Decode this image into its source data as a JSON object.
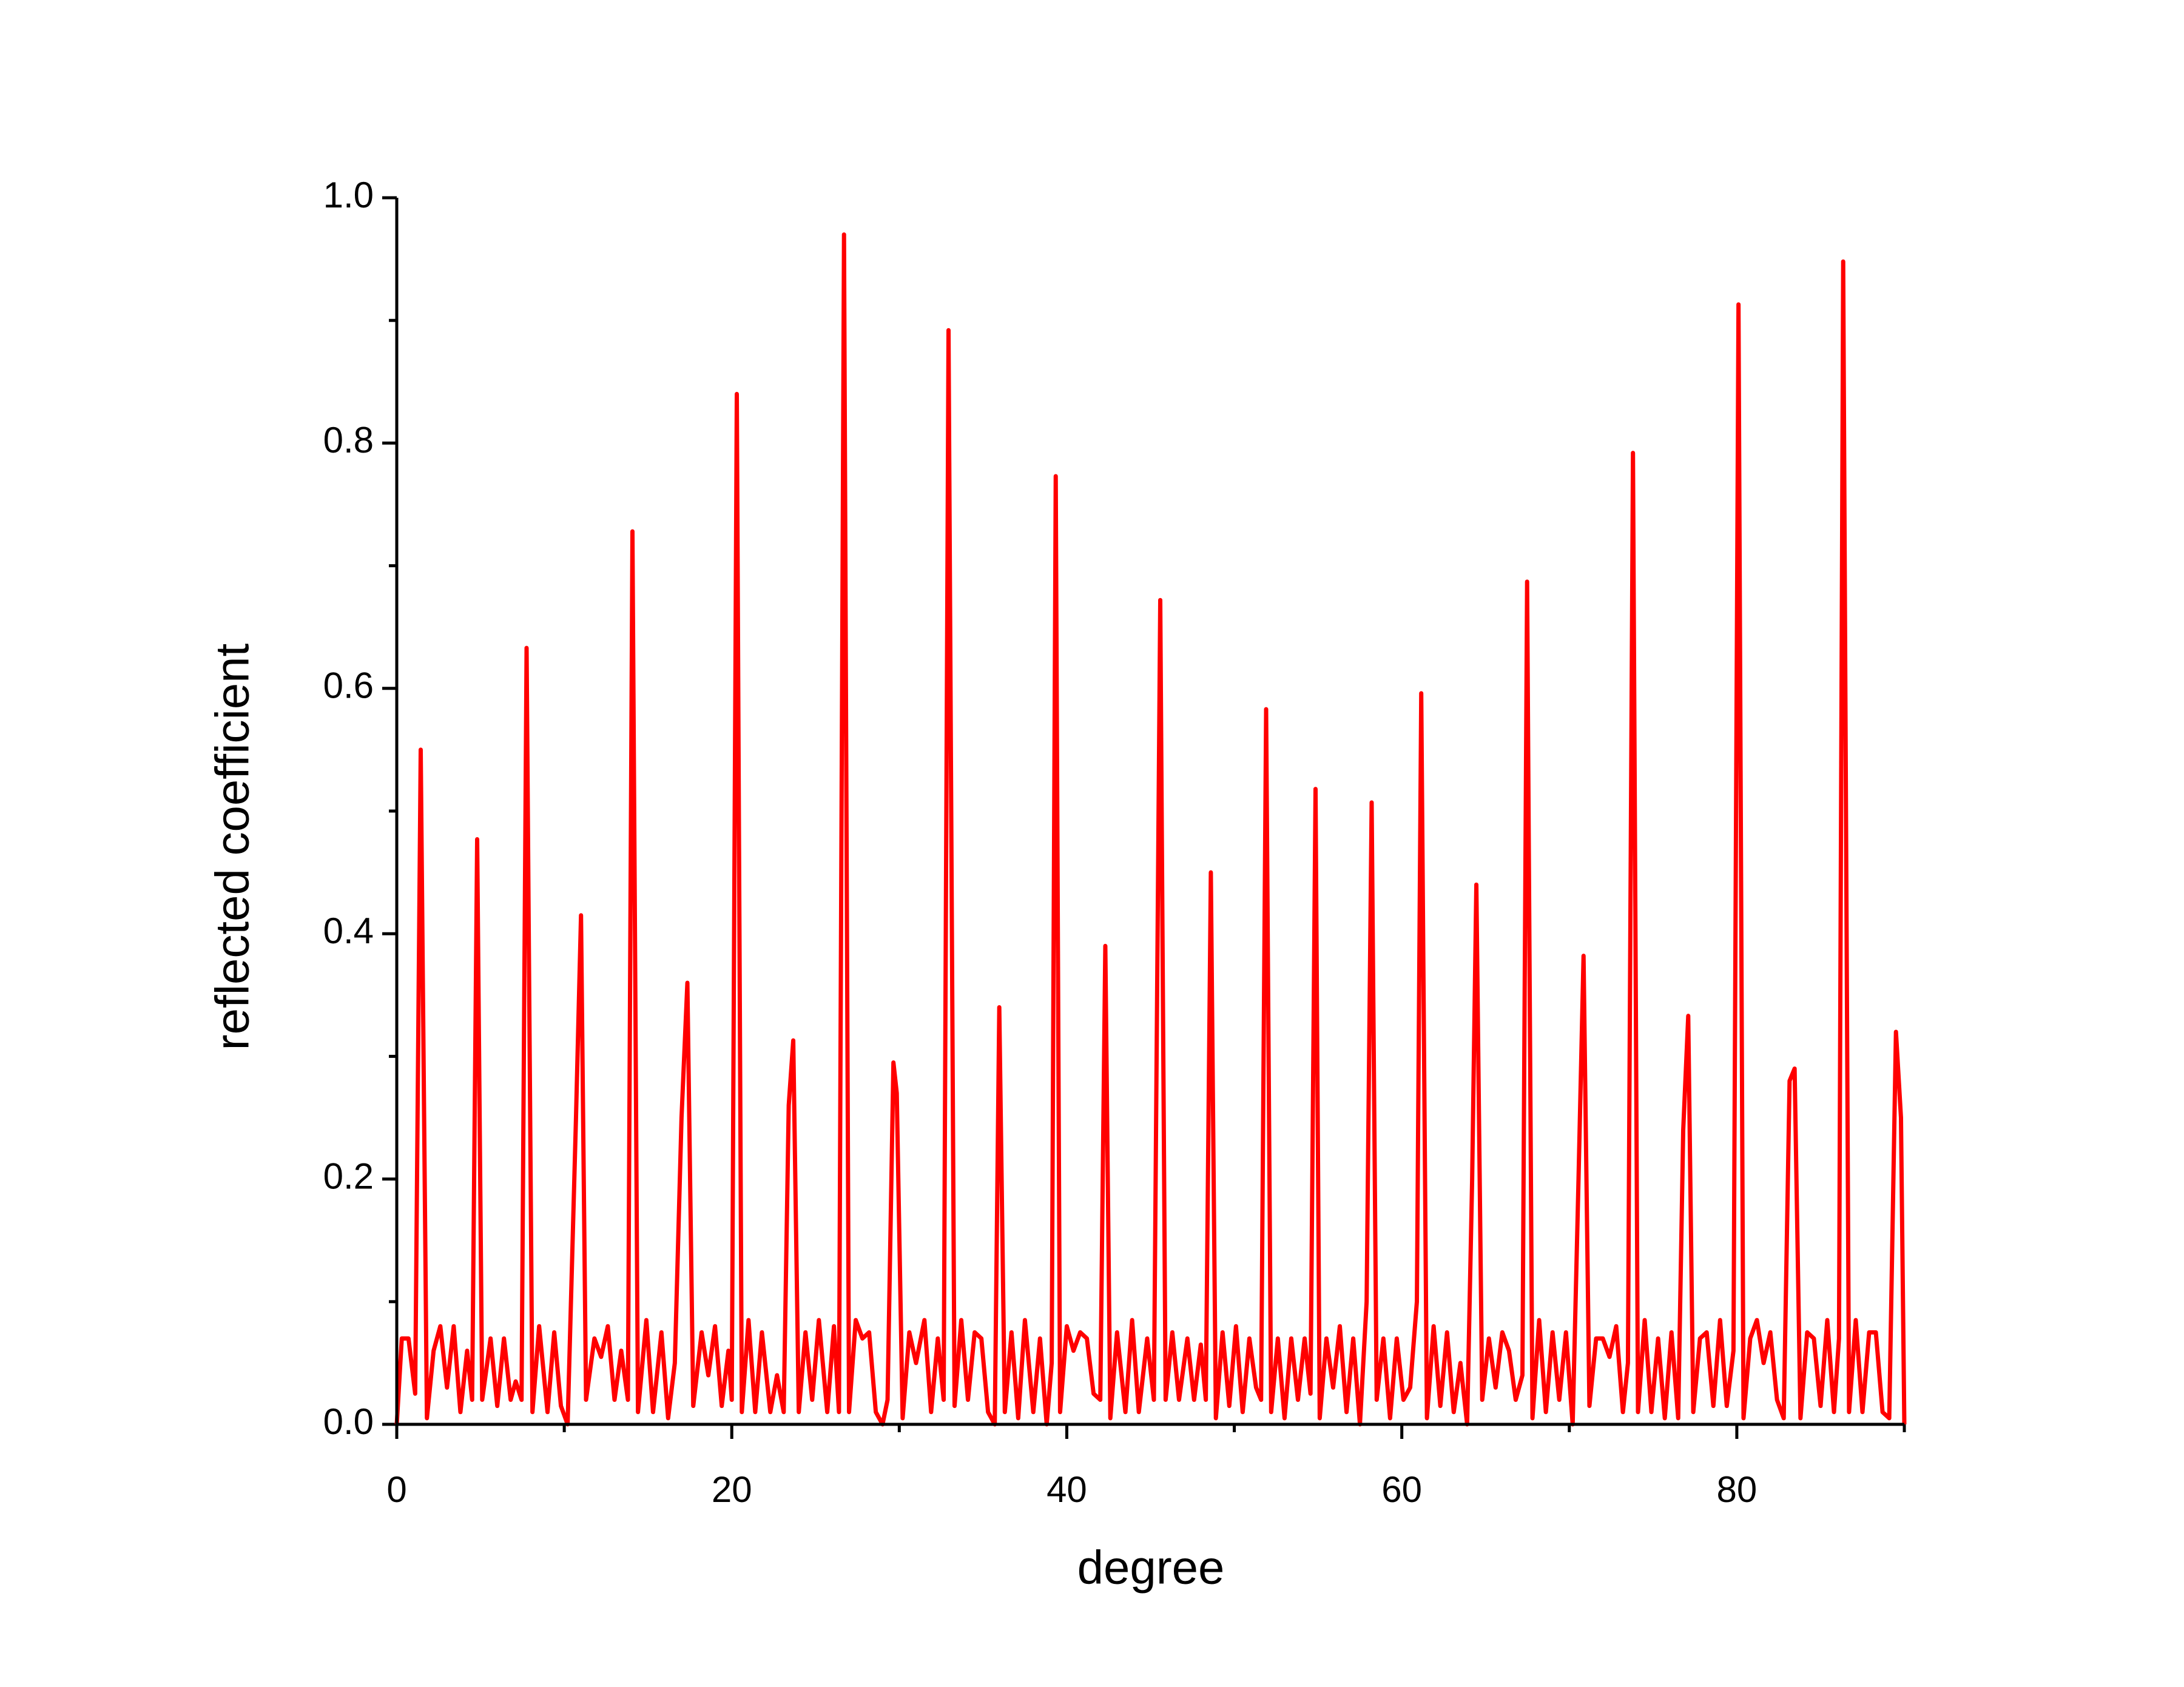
{
  "chart_data": {
    "type": "line",
    "x_label": "degree",
    "y_label": "reflected coefficient",
    "xlim": [
      0,
      90
    ],
    "ylim": [
      0,
      1
    ],
    "xticks": [
      0,
      20,
      40,
      60,
      80
    ],
    "yticks": [
      {
        "value": 0,
        "label": "0.0"
      },
      {
        "value": 0.2,
        "label": "0.2"
      },
      {
        "value": 0.4,
        "label": "0.4"
      },
      {
        "value": 0.6,
        "label": "0.6"
      },
      {
        "value": 0.8,
        "label": "0.8"
      },
      {
        "value": 1,
        "label": "1.0"
      }
    ],
    "xminor_ticks": [
      10,
      30,
      50,
      70,
      90
    ],
    "yminor_ticks": [
      0.1,
      0.3,
      0.5,
      0.7,
      0.9
    ],
    "x": [
      0,
      0.3,
      0.7,
      1.1,
      1.43,
      1.8,
      2.2,
      2.6,
      3.0,
      3.4,
      3.8,
      4.2,
      4.5,
      4.8,
      5.1,
      5.6,
      6.0,
      6.4,
      6.8,
      7.1,
      7.45,
      7.75,
      8.1,
      8.5,
      9.0,
      9.4,
      9.8,
      10.2,
      10.7,
      11.0,
      11.3,
      11.8,
      12.2,
      12.6,
      13.0,
      13.4,
      13.8,
      14.07,
      14.4,
      14.9,
      15.3,
      15.8,
      16.2,
      16.6,
      17.0,
      17.35,
      17.7,
      18.2,
      18.6,
      19.0,
      19.4,
      19.8,
      20.0,
      20.3,
      20.6,
      21.0,
      21.4,
      21.8,
      22.3,
      22.7,
      23.1,
      23.4,
      23.67,
      24.0,
      24.4,
      24.8,
      25.2,
      25.7,
      26.1,
      26.4,
      26.7,
      27.0,
      27.4,
      27.8,
      28.2,
      28.6,
      29.0,
      29.3,
      29.65,
      29.85,
      30.2,
      30.6,
      31.0,
      31.5,
      31.9,
      32.3,
      32.65,
      32.94,
      33.3,
      33.7,
      34.1,
      34.5,
      34.9,
      35.3,
      35.7,
      35.97,
      36.3,
      36.7,
      37.1,
      37.5,
      38.0,
      38.4,
      38.8,
      39.1,
      39.34,
      39.6,
      40.0,
      40.4,
      40.8,
      41.2,
      41.6,
      42.0,
      42.3,
      42.6,
      43.0,
      43.5,
      43.9,
      44.3,
      44.8,
      45.2,
      45.58,
      45.9,
      46.3,
      46.7,
      47.2,
      47.6,
      48.0,
      48.3,
      48.6,
      48.9,
      49.3,
      49.7,
      50.1,
      50.5,
      50.9,
      51.3,
      51.6,
      51.9,
      52.2,
      52.6,
      53.0,
      53.4,
      53.8,
      54.2,
      54.55,
      54.85,
      55.1,
      55.5,
      55.9,
      56.3,
      56.7,
      57.1,
      57.5,
      57.9,
      58.2,
      58.5,
      58.9,
      59.3,
      59.7,
      60.1,
      60.5,
      60.9,
      61.16,
      61.5,
      61.9,
      62.3,
      62.7,
      63.1,
      63.5,
      63.9,
      64.2,
      64.45,
      64.8,
      65.2,
      65.6,
      66.0,
      66.4,
      66.8,
      67.2,
      67.48,
      67.8,
      68.2,
      68.6,
      69.0,
      69.4,
      69.8,
      70.2,
      70.55,
      70.85,
      71.2,
      71.6,
      72.0,
      72.4,
      72.8,
      73.2,
      73.5,
      73.8,
      74.1,
      74.5,
      74.9,
      75.3,
      75.7,
      76.1,
      76.5,
      76.8,
      77.1,
      77.4,
      77.8,
      78.2,
      78.6,
      79.0,
      79.4,
      79.8,
      80.1,
      80.4,
      80.8,
      81.2,
      81.6,
      82.0,
      82.4,
      82.8,
      83.15,
      83.45,
      83.8,
      84.2,
      84.6,
      85.0,
      85.4,
      85.8,
      86.1,
      86.35,
      86.7,
      87.1,
      87.5,
      87.9,
      88.3,
      88.7,
      89.1,
      89.5,
      89.8,
      90
    ],
    "series": [
      {
        "color": "#ff0000",
        "values": [
          0.0,
          0.07,
          0.07,
          0.025,
          0.55,
          0.005,
          0.06,
          0.08,
          0.03,
          0.08,
          0.01,
          0.06,
          0.02,
          0.477,
          0.02,
          0.07,
          0.015,
          0.07,
          0.02,
          0.035,
          0.02,
          0.633,
          0.01,
          0.08,
          0.01,
          0.075,
          0.015,
          0.0,
          0.25,
          0.415,
          0.02,
          0.07,
          0.055,
          0.08,
          0.02,
          0.06,
          0.02,
          0.728,
          0.01,
          0.085,
          0.01,
          0.075,
          0.005,
          0.05,
          0.25,
          0.36,
          0.015,
          0.075,
          0.04,
          0.08,
          0.015,
          0.06,
          0.02,
          0.84,
          0.01,
          0.085,
          0.01,
          0.075,
          0.01,
          0.04,
          0.01,
          0.26,
          0.313,
          0.01,
          0.075,
          0.02,
          0.085,
          0.01,
          0.08,
          0.01,
          0.97,
          0.01,
          0.085,
          0.07,
          0.075,
          0.01,
          0.0,
          0.02,
          0.295,
          0.27,
          0.005,
          0.075,
          0.05,
          0.085,
          0.01,
          0.07,
          0.02,
          0.892,
          0.015,
          0.085,
          0.02,
          0.075,
          0.07,
          0.01,
          0.0,
          0.34,
          0.01,
          0.075,
          0.005,
          0.085,
          0.01,
          0.07,
          0.0,
          0.05,
          0.773,
          0.01,
          0.08,
          0.06,
          0.075,
          0.07,
          0.025,
          0.02,
          0.39,
          0.005,
          0.075,
          0.01,
          0.085,
          0.01,
          0.07,
          0.02,
          0.672,
          0.02,
          0.075,
          0.02,
          0.07,
          0.02,
          0.065,
          0.02,
          0.45,
          0.005,
          0.075,
          0.015,
          0.08,
          0.01,
          0.07,
          0.03,
          0.02,
          0.583,
          0.01,
          0.07,
          0.005,
          0.07,
          0.02,
          0.07,
          0.025,
          0.518,
          0.005,
          0.07,
          0.03,
          0.08,
          0.01,
          0.07,
          0.0,
          0.1,
          0.507,
          0.02,
          0.07,
          0.005,
          0.07,
          0.02,
          0.03,
          0.1,
          0.596,
          0.005,
          0.08,
          0.015,
          0.075,
          0.01,
          0.05,
          0.0,
          0.2,
          0.44,
          0.02,
          0.07,
          0.03,
          0.075,
          0.06,
          0.02,
          0.04,
          0.687,
          0.005,
          0.085,
          0.01,
          0.075,
          0.02,
          0.075,
          0.0,
          0.2,
          0.382,
          0.015,
          0.07,
          0.07,
          0.055,
          0.08,
          0.01,
          0.05,
          0.792,
          0.01,
          0.085,
          0.01,
          0.07,
          0.005,
          0.075,
          0.005,
          0.24,
          0.333,
          0.01,
          0.07,
          0.075,
          0.015,
          0.085,
          0.015,
          0.06,
          0.913,
          0.005,
          0.07,
          0.085,
          0.05,
          0.075,
          0.02,
          0.005,
          0.28,
          0.29,
          0.005,
          0.075,
          0.07,
          0.015,
          0.085,
          0.01,
          0.07,
          0.948,
          0.01,
          0.085,
          0.01,
          0.075,
          0.075,
          0.01,
          0.005,
          0.32,
          0.25,
          0.0
        ]
      }
    ]
  }
}
